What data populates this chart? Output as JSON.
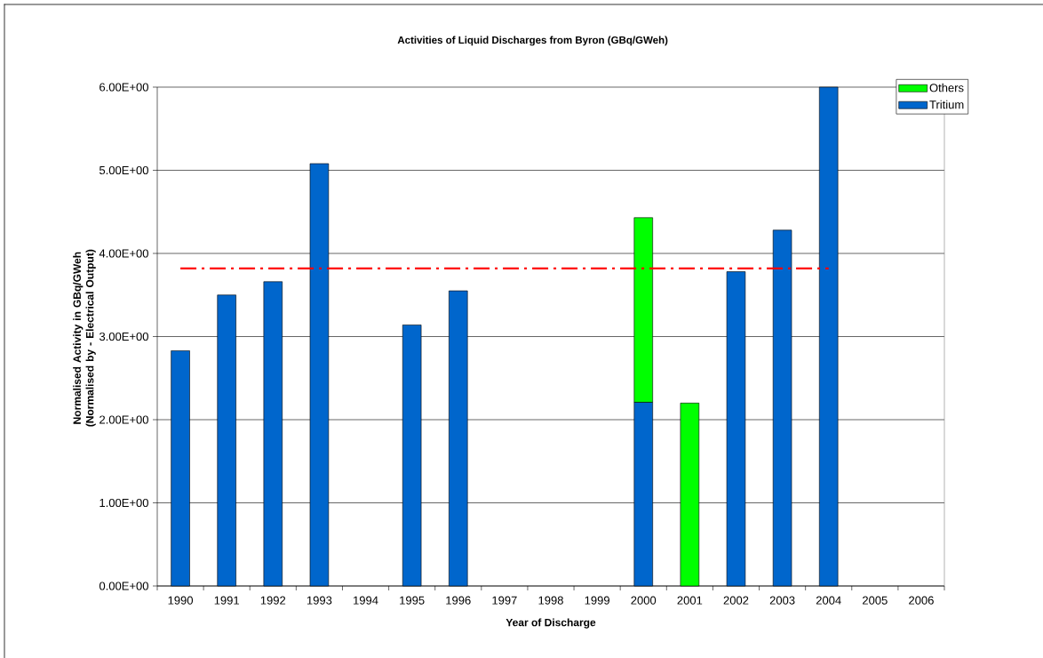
{
  "chart_data": {
    "type": "bar",
    "stacked": true,
    "title": "Activities of Liquid Discharges from Byron (GBq/GWeh)",
    "xlabel": "Year of Discharge",
    "ylabel": "Normalised Activity in GBq/GWeh (Normalised by - Electrical Output)",
    "categories": [
      "1990",
      "1991",
      "1992",
      "1993",
      "1994",
      "1995",
      "1996",
      "1997",
      "1998",
      "1999",
      "2000",
      "2001",
      "2002",
      "2003",
      "2004",
      "2005",
      "2006"
    ],
    "series": [
      {
        "name": "Tritium",
        "color": "#0066cc",
        "values": [
          2.83,
          3.5,
          3.66,
          5.08,
          null,
          3.14,
          3.55,
          null,
          null,
          null,
          2.21,
          null,
          3.78,
          4.28,
          6.0,
          null,
          null
        ]
      },
      {
        "name": "Others",
        "color": "#00ff00",
        "values": [
          null,
          null,
          null,
          null,
          null,
          null,
          null,
          null,
          null,
          null,
          2.22,
          2.2,
          null,
          null,
          null,
          null,
          null
        ]
      },
      {
        "type": "line",
        "color": "#ff0000",
        "line_style": "dashdot",
        "values": [
          3.82,
          3.82,
          3.82,
          3.82,
          3.82,
          3.82,
          3.82,
          3.82,
          3.82,
          3.82,
          3.82,
          3.82,
          3.82,
          3.82,
          3.82,
          null,
          null
        ]
      }
    ],
    "ylim": [
      0,
      6
    ],
    "yticks": [
      {
        "value": 0,
        "label": "0.00E+00"
      },
      {
        "value": 1,
        "label": "1.00E+00"
      },
      {
        "value": 2,
        "label": "2.00E+00"
      },
      {
        "value": 3,
        "label": "3.00E+00"
      },
      {
        "value": 4,
        "label": "4.00E+00"
      },
      {
        "value": 5,
        "label": "5.00E+00"
      },
      {
        "value": 6,
        "label": "6.00E+00"
      }
    ],
    "grid": "y",
    "legend": "top right"
  }
}
